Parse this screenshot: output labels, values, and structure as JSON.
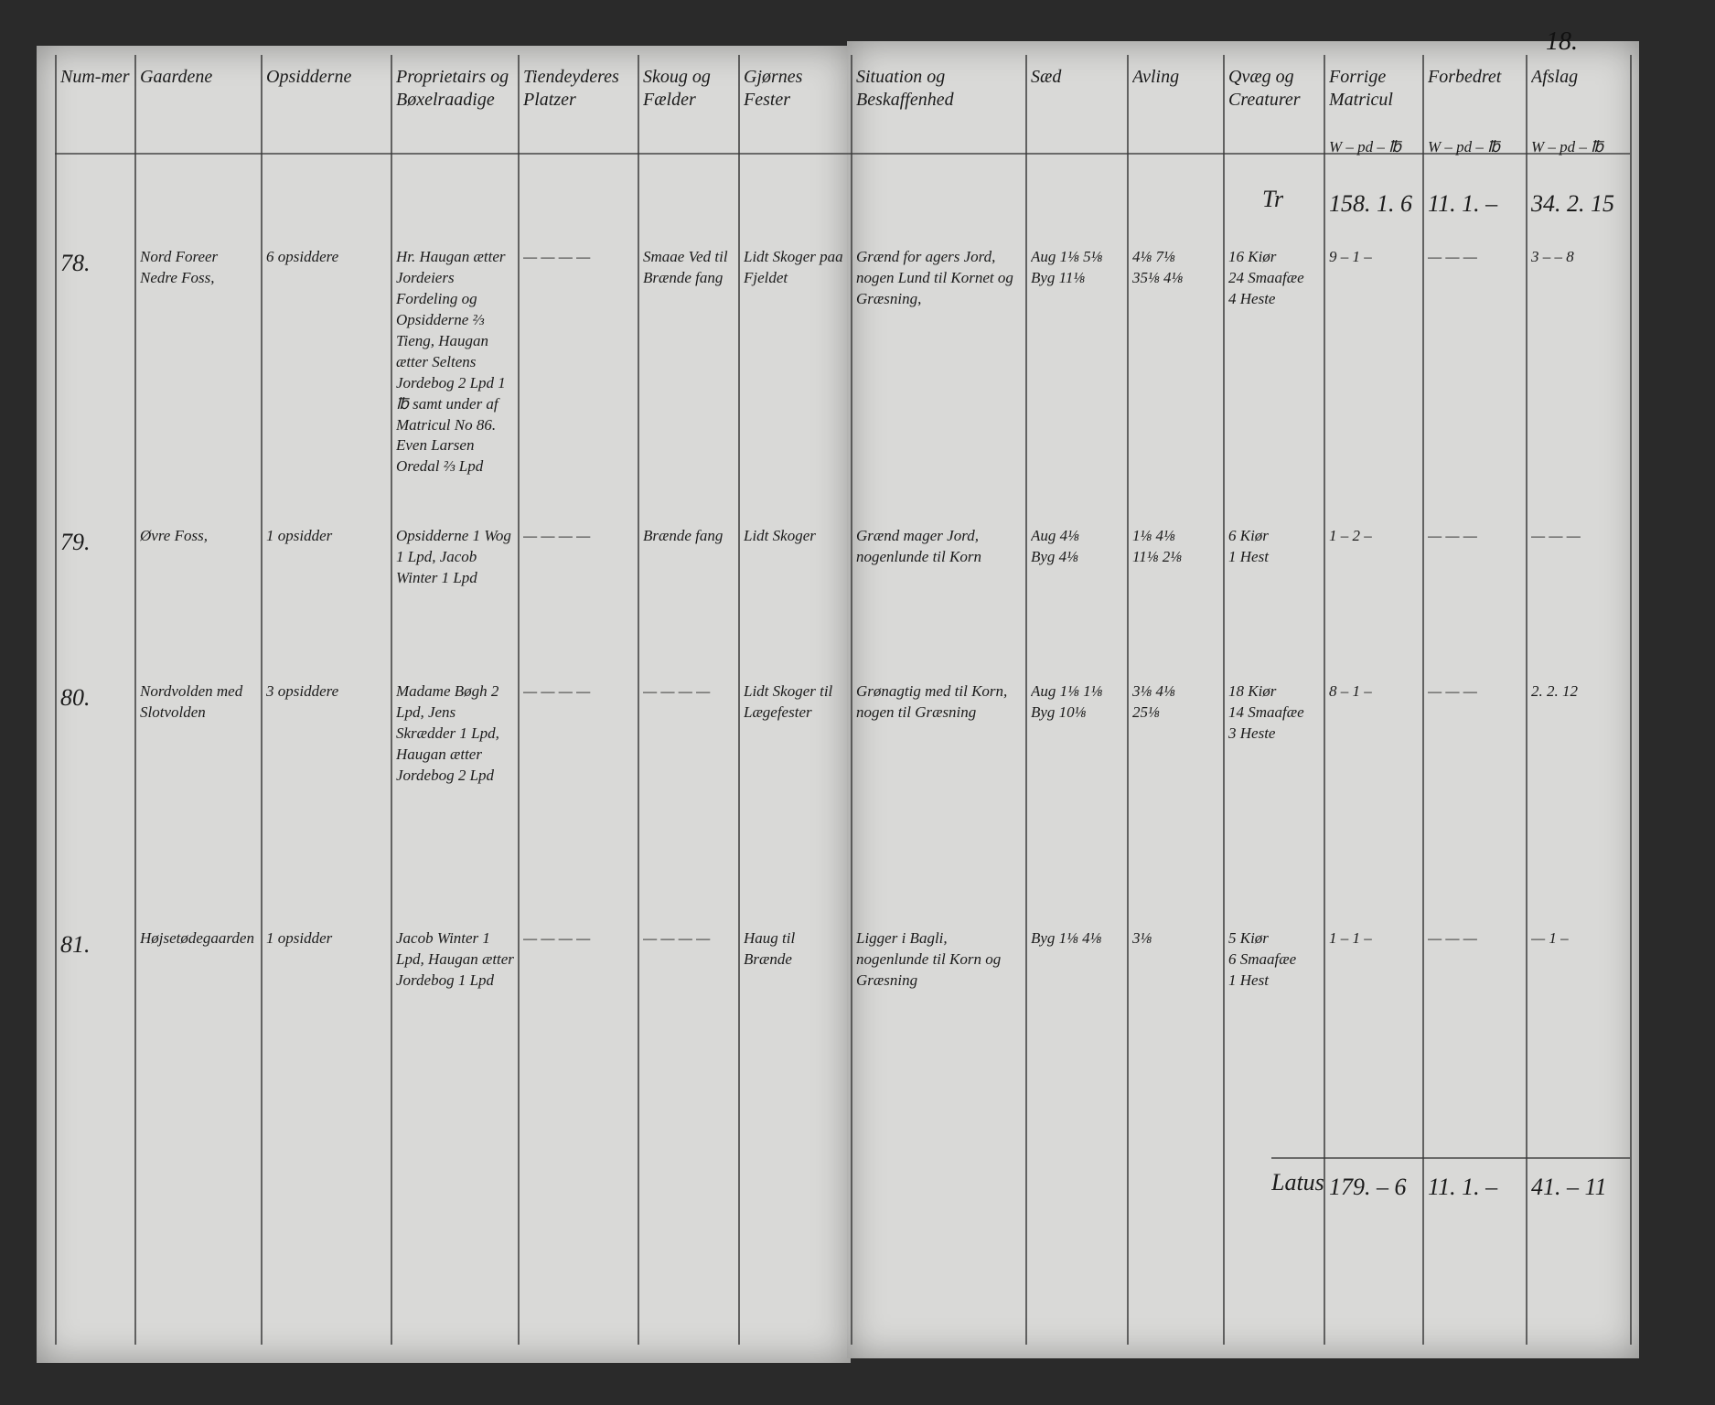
{
  "page_number": "18.",
  "headers": [
    "Num-mer",
    "Gaardene",
    "Opsidderne",
    "Proprietairs og Bøxelraadige",
    "Tiendeyderes Platzer",
    "Skoug og Fælder",
    "Gjørnes Fester",
    "Situation og Beskaffenhed",
    "Sæd",
    "Avling",
    "Qvæg og Creaturer",
    "Forrige Matricul",
    "Forbedret",
    "Afslag"
  ],
  "units": [
    "W – pd – ℔",
    "W – pd – ℔",
    "W – pd – ℔"
  ],
  "carried": {
    "label": "Tr",
    "values": [
      "158. 1. 6",
      "11. 1. –",
      "34. 2. 15"
    ]
  },
  "rows": [
    {
      "cells": [
        "78.",
        "Nord Foreer Nedre Foss,",
        "6 opsiddere",
        "Hr. Haugan ætter Jordeiers Fordeling og Opsidderne ⅔ Tieng, Haugan ætter Seltens Jordebog 2 Lpd 1 ℔ samt under af Matricul No 86. Even Larsen Oredal ⅔ Lpd",
        "— — — —",
        "Smaae Ved til Brænde fang",
        "Lidt Skoger paa Fjeldet",
        "Grænd for agers Jord, nogen Lund til Kornet og Græsning,",
        "Aug 1⅛ 5⅛\nByg 11⅛",
        "4⅛ 7⅛\n35⅛ 4⅛",
        "16 Kiør\n24 Smaafæe\n4 Heste",
        "9 – 1 –",
        "— — —",
        "3 – – 8"
      ]
    },
    {
      "cells": [
        "79.",
        "Øvre Foss,",
        "1 opsidder",
        "Opsidderne 1 Wog 1 Lpd, Jacob Winter 1 Lpd",
        "— — — —",
        "Brænde fang",
        "Lidt Skoger",
        "Grænd mager Jord, nogenlunde til Korn",
        "Aug 4⅛\nByg 4⅛",
        "1⅛ 4⅛\n11⅛ 2⅛",
        "6 Kiør\n1 Hest",
        "1 – 2 –",
        "— — —",
        "— — —"
      ]
    },
    {
      "cells": [
        "80.",
        "Nordvolden med Slotvolden",
        "3 opsiddere",
        "Madame Bøgh 2 Lpd, Jens Skrædder 1 Lpd, Haugan ætter Jordebog 2 Lpd",
        "— — — —",
        "— — — —",
        "Lidt Skoger til Lægefester",
        "Grønagtig med til Korn, nogen til Græsning",
        "Aug 1⅛ 1⅛\nByg 10⅛",
        "3⅛ 4⅛\n25⅛",
        "18 Kiør\n14 Smaafæe\n3 Heste",
        "8 – 1 –",
        "— — —",
        "2. 2. 12"
      ]
    },
    {
      "cells": [
        "81.",
        "Højsetødegaarden",
        "1 opsidder",
        "Jacob Winter 1 Lpd, Haugan ætter Jordebog 1 Lpd",
        "— — — —",
        "— — — —",
        "Haug til Brænde",
        "Ligger i Bagli, nogenlunde til Korn og Græsning",
        "Byg 1⅛ 4⅛",
        "3⅛",
        "5 Kiør\n6 Smaafæe\n1 Hest",
        "1 – 1 –",
        "— — —",
        "— 1 –"
      ]
    }
  ],
  "total": {
    "label": "Latus",
    "values": [
      "179. – 6",
      "11. 1. –",
      "41. – 11"
    ]
  }
}
